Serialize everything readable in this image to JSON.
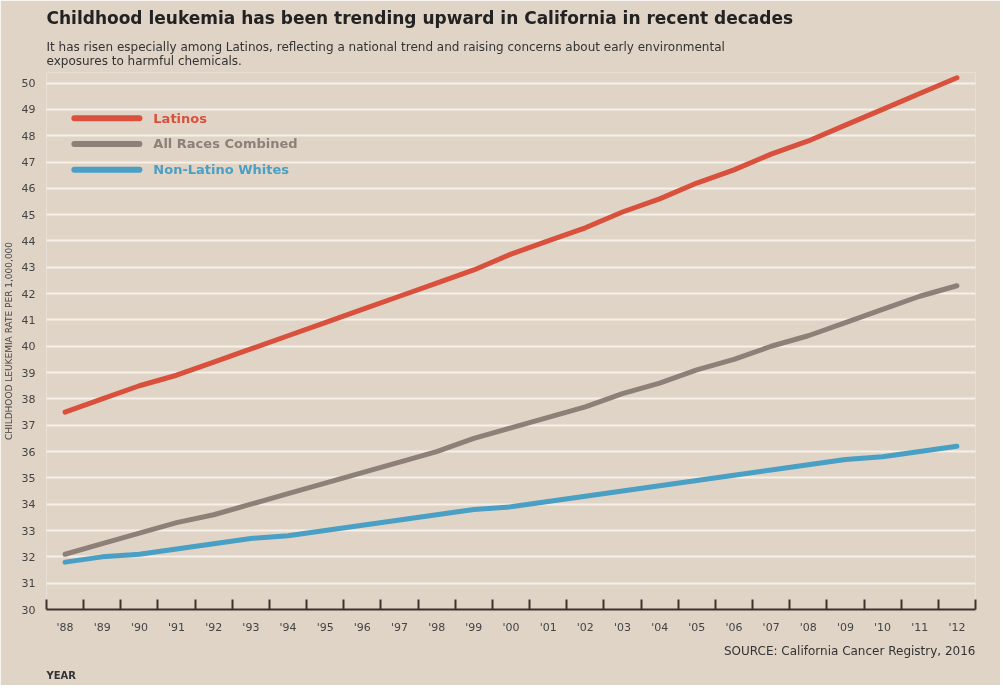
{
  "chart_data": {
    "type": "line",
    "title": "Childhood leukemia has been trending upward in California in recent decades",
    "subtitle": "It has risen especially among Latinos, reflecting a national trend and raising concerns about early environmental exposures to harmful chemicals.",
    "xlabel": "YEAR",
    "ylabel": "CHILDHOOD LEUKEMIA RATE PER 1,000,000",
    "annotations": [
      "SOURCE: California Cancer Registry, 2016"
    ],
    "categories": [
      "'88",
      "'89",
      "'90",
      "'91",
      "'92",
      "'93",
      "'94",
      "'95",
      "'96",
      "'97",
      "'98",
      "'99",
      "'00",
      "'01",
      "'02",
      "'03",
      "'04",
      "'05",
      "'06",
      "'07",
      "'08",
      "'09",
      "'10",
      "'11",
      "'12"
    ],
    "series": [
      {
        "name": "Latinos",
        "color": "#d9503c",
        "values": [
          37.5,
          38.0,
          38.5,
          38.9,
          39.4,
          39.9,
          40.4,
          40.9,
          41.4,
          41.9,
          42.4,
          42.9,
          43.5,
          44.0,
          44.5,
          45.1,
          45.6,
          46.2,
          46.7,
          47.3,
          47.8,
          48.4,
          49.0,
          49.6,
          50.2
        ]
      },
      {
        "name": "All Races Combined",
        "color": "#8c8079",
        "values": [
          32.1,
          32.5,
          32.9,
          33.3,
          33.6,
          34.0,
          34.4,
          34.8,
          35.2,
          35.6,
          36.0,
          36.5,
          36.9,
          37.3,
          37.7,
          38.2,
          38.6,
          39.1,
          39.5,
          40.0,
          40.4,
          40.9,
          41.4,
          41.9,
          42.3
        ]
      },
      {
        "name": "Non-Latino Whites",
        "color": "#4a9fc4",
        "values": [
          31.8,
          32.0,
          32.1,
          32.3,
          32.5,
          32.7,
          32.8,
          33.0,
          33.2,
          33.4,
          33.6,
          33.8,
          33.9,
          34.1,
          34.3,
          34.5,
          34.7,
          34.9,
          35.1,
          35.3,
          35.5,
          35.7,
          35.8,
          36.0,
          36.2
        ]
      }
    ],
    "ylim": [
      30,
      50.4
    ],
    "yticks": [
      30,
      31,
      32,
      33,
      34,
      35,
      36,
      37,
      38,
      39,
      40,
      41,
      42,
      43,
      44,
      45,
      46,
      47,
      48,
      49,
      50
    ],
    "grid": "y",
    "legend": "top left",
    "marker": "none",
    "line_style": "solid"
  }
}
